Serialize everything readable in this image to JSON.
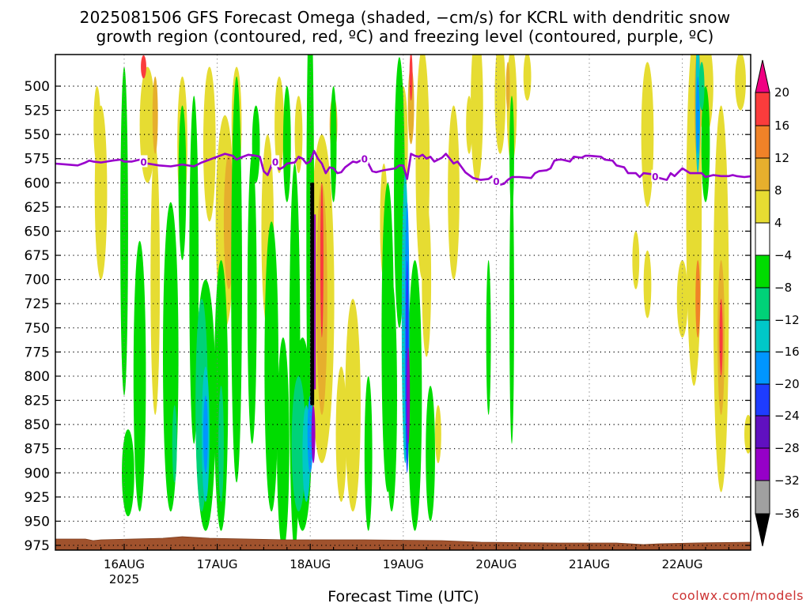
{
  "title_line1": "2025081506 GFS Forecast Omega (shaded, −cm/s) for KCRL with dendritic snow",
  "title_line2": "growth region (contoured, red, ºC) and freezing level (contoured, purple, ºC)",
  "xlabel": "Forecast Time (UTC)",
  "credit": "coolwx.com/models",
  "chart_data": {
    "type": "heatmap",
    "title": "2025081506 GFS Forecast Omega (shaded, −cm/s) for KCRL with dendritic snow growth region (contoured, red, ºC) and freezing level (contoured, purple, ºC)",
    "xlabel": "Forecast Time (UTC)",
    "ylabel": "",
    "y_levels_hpa": [
      500,
      525,
      550,
      575,
      600,
      625,
      650,
      675,
      700,
      725,
      750,
      775,
      800,
      825,
      850,
      875,
      900,
      925,
      950,
      975
    ],
    "ylim": [
      475,
      985
    ],
    "y_reversed": true,
    "x_ticks": [
      {
        "label": "16AUG",
        "sublabel": "2025",
        "hour": 18
      },
      {
        "label": "17AUG",
        "sublabel": "",
        "hour": 42
      },
      {
        "label": "18AUG",
        "sublabel": "",
        "hour": 66
      },
      {
        "label": "19AUG",
        "sublabel": "",
        "hour": 90
      },
      {
        "label": "20AUG",
        "sublabel": "",
        "hour": 114
      },
      {
        "label": "21AUG",
        "sublabel": "",
        "hour": 138
      },
      {
        "label": "22AUG",
        "sublabel": "",
        "hour": 162
      }
    ],
    "xlim_hours": [
      0,
      180
    ],
    "grid": true,
    "colorbar": {
      "levels": [
        -36,
        -32,
        -28,
        -24,
        -20,
        -16,
        -12,
        -8,
        -4,
        4,
        8,
        12,
        16,
        20
      ],
      "colors": [
        "#000000",
        "#a0a0a0",
        "#9600c8",
        "#6010c0",
        "#1e3cff",
        "#0096ff",
        "#00c8c8",
        "#00d278",
        "#00dc00",
        "#ffffff",
        "#e6dc32",
        "#e6af2d",
        "#f08228",
        "#fa3c3c",
        "#f00082"
      ]
    },
    "freezing_level": {
      "label": "0",
      "color": "#9900cc",
      "points": [
        [
          0,
          580
        ],
        [
          3,
          581
        ],
        [
          6,
          582
        ],
        [
          8,
          579
        ],
        [
          9,
          577
        ],
        [
          10,
          578
        ],
        [
          12,
          579
        ],
        [
          15,
          577
        ],
        [
          17,
          576
        ],
        [
          18,
          578
        ],
        [
          20,
          578
        ],
        [
          22,
          576
        ],
        [
          24,
          580
        ],
        [
          27,
          582
        ],
        [
          30,
          583
        ],
        [
          33,
          581
        ],
        [
          36,
          583
        ],
        [
          38,
          579
        ],
        [
          40,
          576
        ],
        [
          42,
          573
        ],
        [
          44,
          570
        ],
        [
          46,
          572
        ],
        [
          47,
          576
        ],
        [
          48,
          574
        ],
        [
          50,
          571
        ],
        [
          52,
          572
        ],
        [
          53,
          573
        ],
        [
          54,
          588
        ],
        [
          55,
          592
        ],
        [
          56,
          582
        ],
        [
          57,
          578
        ],
        [
          58,
          586
        ],
        [
          59,
          584
        ],
        [
          60,
          580
        ],
        [
          62,
          579
        ],
        [
          63,
          573
        ],
        [
          64,
          575
        ],
        [
          65,
          580
        ],
        [
          66,
          578
        ],
        [
          67,
          567
        ],
        [
          68,
          575
        ],
        [
          69,
          580
        ],
        [
          70,
          590
        ],
        [
          71,
          584
        ],
        [
          72,
          585
        ],
        [
          73,
          590
        ],
        [
          74,
          589
        ],
        [
          75,
          584
        ],
        [
          77,
          578
        ],
        [
          78,
          579
        ],
        [
          80,
          575
        ],
        [
          81,
          580
        ],
        [
          82,
          588
        ],
        [
          83,
          589
        ],
        [
          85,
          587
        ],
        [
          88,
          585
        ],
        [
          89,
          582
        ],
        [
          90,
          582
        ],
        [
          91,
          596
        ],
        [
          92,
          570
        ],
        [
          93,
          572
        ],
        [
          94,
          573
        ],
        [
          95,
          571
        ],
        [
          96,
          575
        ],
        [
          97,
          573
        ],
        [
          98,
          578
        ],
        [
          99,
          576
        ],
        [
          100,
          574
        ],
        [
          101,
          570
        ],
        [
          102,
          575
        ],
        [
          103,
          580
        ],
        [
          104,
          578
        ],
        [
          106,
          589
        ],
        [
          108,
          595
        ],
        [
          110,
          597
        ],
        [
          112,
          596
        ],
        [
          113,
          593
        ],
        [
          114,
          598
        ],
        [
          115,
          602
        ],
        [
          116,
          601
        ],
        [
          117,
          597
        ],
        [
          118,
          594
        ],
        [
          120,
          594
        ],
        [
          123,
          595
        ],
        [
          124,
          590
        ],
        [
          125,
          588
        ],
        [
          127,
          587
        ],
        [
          128,
          585
        ],
        [
          129,
          577
        ],
        [
          130,
          576
        ],
        [
          131,
          576
        ],
        [
          133,
          578
        ],
        [
          134,
          573
        ],
        [
          136,
          574
        ],
        [
          137,
          572
        ],
        [
          138,
          572
        ],
        [
          141,
          573
        ],
        [
          142,
          576
        ],
        [
          144,
          577
        ],
        [
          145,
          582
        ],
        [
          146,
          583
        ],
        [
          147,
          584
        ],
        [
          148,
          590
        ],
        [
          150,
          590
        ],
        [
          151,
          594
        ],
        [
          152,
          590
        ],
        [
          154,
          591
        ],
        [
          155,
          593
        ],
        [
          156,
          595
        ],
        [
          158,
          597
        ],
        [
          159,
          590
        ],
        [
          160,
          593
        ],
        [
          162,
          585
        ],
        [
          164,
          590
        ],
        [
          166,
          590
        ],
        [
          167,
          590
        ],
        [
          168,
          594
        ],
        [
          170,
          592
        ],
        [
          172,
          593
        ],
        [
          174,
          593
        ],
        [
          175,
          592
        ],
        [
          176,
          593
        ],
        [
          178,
          594
        ],
        [
          180,
          593
        ]
      ],
      "label_hours": [
        23,
        57,
        80,
        114,
        155
      ]
    },
    "omega_features": [
      {
        "hour": 66.5,
        "p_top": 600,
        "p_bot": 830,
        "min_value": -36,
        "note": "strongest rising motion column"
      },
      {
        "hour": 91,
        "p_top": 640,
        "p_bot": 910,
        "min_value": -20
      },
      {
        "hour": 40.5,
        "p_top": 740,
        "p_bot": 950,
        "min_value": -16
      },
      {
        "hour": 165.5,
        "p_top": 475,
        "p_bot": 585,
        "min_value": -16
      }
    ],
    "surface_color": "#a0522d"
  }
}
